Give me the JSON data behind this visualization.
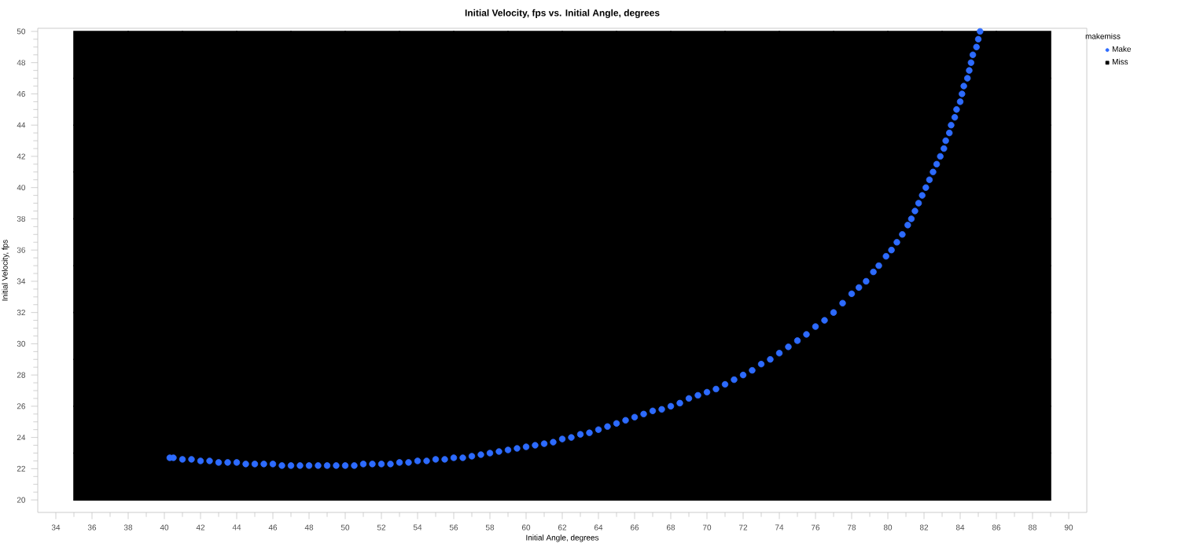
{
  "chart_data": {
    "type": "scatter",
    "title": "Initial Velocity, fps vs. Initial Angle, degrees",
    "xlabel": "Initial Angle, degrees",
    "ylabel": "Initial Velocity, fps",
    "legend_title": "makemiss",
    "legend": "right",
    "xlim": [
      33.0,
      91.0
    ],
    "ylim": [
      19.2,
      50.2
    ],
    "xticks": [
      34,
      36,
      38,
      40,
      42,
      44,
      46,
      48,
      50,
      52,
      54,
      56,
      58,
      60,
      62,
      64,
      66,
      68,
      70,
      72,
      74,
      76,
      78,
      80,
      82,
      84,
      86,
      88,
      90
    ],
    "yticks": [
      20,
      22,
      24,
      26,
      28,
      30,
      32,
      34,
      36,
      38,
      40,
      42,
      44,
      46,
      48,
      50
    ],
    "series": [
      {
        "name": "Make",
        "color": "#2d6bff",
        "marker": "circle",
        "x": [
          40.3,
          40.5,
          41,
          41.5,
          42,
          42.5,
          43,
          43.5,
          44,
          44.5,
          45,
          45.5,
          46,
          46.5,
          47,
          47.5,
          48,
          48.5,
          49,
          49.5,
          50,
          50.5,
          51,
          51.5,
          52,
          52.5,
          53,
          53.5,
          54,
          54.5,
          55,
          55.5,
          56,
          56.5,
          57,
          57.5,
          58,
          58.5,
          59,
          59.5,
          60,
          60.5,
          61,
          61.5,
          62,
          62.5,
          63,
          63.5,
          64,
          64.5,
          65,
          65.5,
          66,
          66.5,
          67,
          67.5,
          68,
          68.5,
          69,
          69.5,
          70,
          70.5,
          71,
          71.5,
          72,
          72.5,
          73,
          73.5,
          74,
          74.5,
          75,
          75.5,
          76,
          76.5,
          77,
          77.5,
          78,
          78.4,
          78.8,
          79.2,
          79.5,
          79.9,
          80.2,
          80.5,
          80.8,
          81.1,
          81.3,
          81.5,
          81.7,
          81.9,
          82.1,
          82.3,
          82.5,
          82.7,
          82.9,
          83.1,
          83.2,
          83.4,
          83.5,
          83.7,
          83.8,
          84,
          84.1,
          84.2,
          84.4,
          84.5,
          84.6,
          84.7,
          84.9,
          85,
          85.1
        ],
        "values": [
          22.7,
          22.7,
          22.6,
          22.6,
          22.5,
          22.5,
          22.4,
          22.4,
          22.4,
          22.3,
          22.3,
          22.3,
          22.3,
          22.2,
          22.2,
          22.2,
          22.2,
          22.2,
          22.2,
          22.2,
          22.2,
          22.2,
          22.3,
          22.3,
          22.3,
          22.3,
          22.4,
          22.4,
          22.5,
          22.5,
          22.6,
          22.6,
          22.7,
          22.7,
          22.8,
          22.9,
          23.0,
          23.1,
          23.2,
          23.3,
          23.4,
          23.5,
          23.6,
          23.7,
          23.9,
          24.0,
          24.2,
          24.3,
          24.5,
          24.7,
          24.9,
          25.1,
          25.3,
          25.5,
          25.7,
          25.8,
          26.0,
          26.2,
          26.5,
          26.7,
          26.9,
          27.1,
          27.4,
          27.7,
          28.0,
          28.3,
          28.7,
          29.0,
          29.4,
          29.8,
          30.2,
          30.6,
          31.1,
          31.5,
          32.0,
          32.6,
          33.2,
          33.6,
          34.0,
          34.6,
          35.0,
          35.6,
          36.0,
          36.5,
          37.0,
          37.6,
          38.0,
          38.5,
          39.0,
          39.5,
          40.0,
          40.5,
          41.0,
          41.5,
          42.0,
          42.5,
          43.0,
          43.5,
          44.0,
          44.5,
          45.0,
          45.5,
          46.0,
          46.5,
          47.0,
          47.5,
          48.0,
          48.5,
          49.0,
          49.5,
          50.0
        ]
      },
      {
        "name": "Miss",
        "color": "#000000",
        "marker": "square",
        "x": [
          36.5,
          39.5,
          42.5,
          45.5,
          48.5,
          51.5,
          54.5,
          57.5,
          60.5,
          63.5,
          66.5,
          69.5,
          72.5,
          75.5,
          78.5,
          81.5,
          84.5,
          87.5,
          36.5,
          39.5,
          42.5,
          45.5,
          48.5,
          51.5,
          54.5,
          57.5,
          60.5,
          63.5,
          66.5,
          69.5,
          72.5,
          75.5,
          78.5,
          81.5,
          84.5,
          87.5,
          36.5,
          39.5,
          42.5,
          45.5,
          48.5,
          51.5,
          54.5,
          57.5,
          60.5,
          63.5,
          66.5,
          69.5,
          72.5,
          75.5,
          78.5,
          81.5,
          84.5,
          87.5,
          36.5,
          39.5,
          42.5,
          45.5,
          48.5,
          51.5,
          54.5,
          57.5,
          60.5,
          63.5,
          66.5,
          69.5,
          72.5,
          75.5,
          78.5,
          81.5,
          84.5,
          87.5,
          36.5,
          39.5,
          42.5,
          45.5,
          48.5,
          51.5,
          54.5,
          57.5,
          60.5,
          63.5,
          66.5,
          69.5,
          72.5,
          75.5,
          78.5,
          81.5,
          84.5,
          87.5,
          36.5,
          39.5,
          42.5,
          45.5,
          48.5,
          51.5,
          54.5,
          57.5,
          60.5,
          63.5,
          66.5,
          69.5,
          72.5,
          75.5,
          78.5,
          81.5,
          84.5,
          87.5,
          36.5,
          39.5,
          42.5,
          45.5,
          48.5,
          51.5,
          54.5,
          57.5,
          60.5,
          63.5,
          66.5,
          69.5,
          72.5,
          75.5,
          78.5,
          81.5,
          84.5,
          87.5,
          36.5,
          39.5,
          42.5,
          45.5,
          48.5,
          51.5,
          54.5,
          57.5,
          60.5,
          63.5,
          66.5,
          69.5,
          72.5,
          75.5,
          78.5,
          81.5,
          84.5,
          87.5,
          36.5,
          39.5,
          42.5,
          45.5,
          48.5,
          51.5,
          54.5,
          57.5,
          60.5,
          63.5,
          66.5,
          69.5,
          72.5,
          75.5,
          78.5,
          81.5,
          84.5,
          87.5,
          36.5,
          39.5,
          42.5,
          45.5,
          48.5,
          51.5,
          54.5,
          57.5,
          60.5,
          63.5,
          66.5,
          69.5,
          72.5,
          75.5,
          78.5,
          81.5,
          84.5,
          87.5
        ],
        "values": [
          21.5,
          21.5,
          21.5,
          21.5,
          21.5,
          21.5,
          21.5,
          21.5,
          21.5,
          21.5,
          21.5,
          21.5,
          21.5,
          21.5,
          21.5,
          21.5,
          21.5,
          21.5,
          24.5,
          24.5,
          24.5,
          24.5,
          24.5,
          24.5,
          24.5,
          24.5,
          24.5,
          24.5,
          24.5,
          24.5,
          24.5,
          24.5,
          24.5,
          24.5,
          24.5,
          24.5,
          27.5,
          27.5,
          27.5,
          27.5,
          27.5,
          27.5,
          27.5,
          27.5,
          27.5,
          27.5,
          27.5,
          27.5,
          27.5,
          27.5,
          27.5,
          27.5,
          27.5,
          27.5,
          30.5,
          30.5,
          30.5,
          30.5,
          30.5,
          30.5,
          30.5,
          30.5,
          30.5,
          30.5,
          30.5,
          30.5,
          30.5,
          30.5,
          30.5,
          30.5,
          30.5,
          30.5,
          33.5,
          33.5,
          33.5,
          33.5,
          33.5,
          33.5,
          33.5,
          33.5,
          33.5,
          33.5,
          33.5,
          33.5,
          33.5,
          33.5,
          33.5,
          33.5,
          33.5,
          33.5,
          36.5,
          36.5,
          36.5,
          36.5,
          36.5,
          36.5,
          36.5,
          36.5,
          36.5,
          36.5,
          36.5,
          36.5,
          36.5,
          36.5,
          36.5,
          36.5,
          36.5,
          36.5,
          39.5,
          39.5,
          39.5,
          39.5,
          39.5,
          39.5,
          39.5,
          39.5,
          39.5,
          39.5,
          39.5,
          39.5,
          39.5,
          39.5,
          39.5,
          39.5,
          39.5,
          39.5,
          42.5,
          42.5,
          42.5,
          42.5,
          42.5,
          42.5,
          42.5,
          42.5,
          42.5,
          42.5,
          42.5,
          42.5,
          42.5,
          42.5,
          42.5,
          42.5,
          42.5,
          42.5,
          45.5,
          45.5,
          45.5,
          45.5,
          45.5,
          45.5,
          45.5,
          45.5,
          45.5,
          45.5,
          45.5,
          45.5,
          45.5,
          45.5,
          45.5,
          45.5,
          45.5,
          45.5,
          48.5,
          48.5,
          48.5,
          48.5,
          48.5,
          48.5,
          48.5,
          48.5,
          48.5,
          48.5,
          48.5,
          48.5,
          48.5,
          48.5,
          48.5,
          48.5,
          48.5,
          48.5
        ]
      }
    ]
  }
}
